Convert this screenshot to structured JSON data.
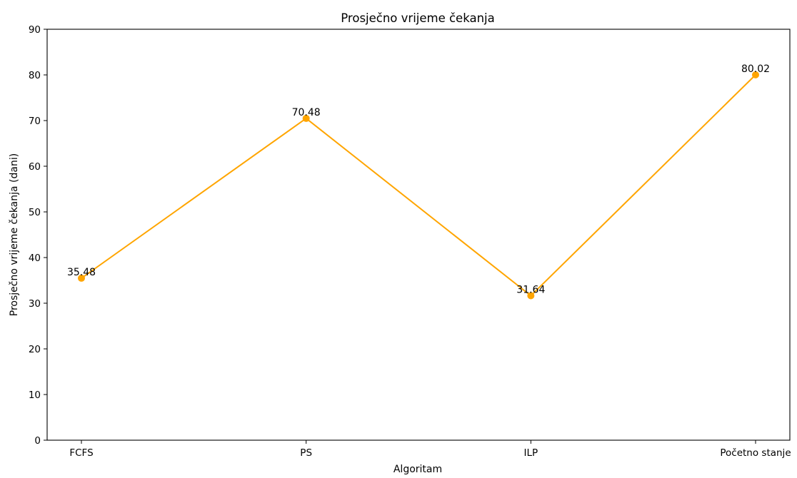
{
  "chart_data": {
    "type": "line",
    "title": "Prosječno vrijeme čekanja",
    "xlabel": "Algoritam",
    "ylabel": "Prosječno vrijeme čekanja (dani)",
    "categories": [
      "FCFS",
      "PS",
      "ILP",
      "Početno stanje"
    ],
    "series": [
      {
        "values": [
          35.48,
          70.48,
          31.64,
          80.02
        ],
        "color": "#FFA500",
        "marker": "circle"
      }
    ],
    "data_labels": [
      "35.48",
      "70.48",
      "31.64",
      "80.02"
    ],
    "ylim": [
      0,
      90
    ],
    "yticks": [
      0,
      10,
      20,
      30,
      40,
      50,
      60,
      70,
      80,
      90
    ],
    "ytick_labels": [
      "0",
      "10",
      "20",
      "30",
      "40",
      "50",
      "60",
      "70",
      "80",
      "90"
    ],
    "grid": false,
    "legend": false
  }
}
